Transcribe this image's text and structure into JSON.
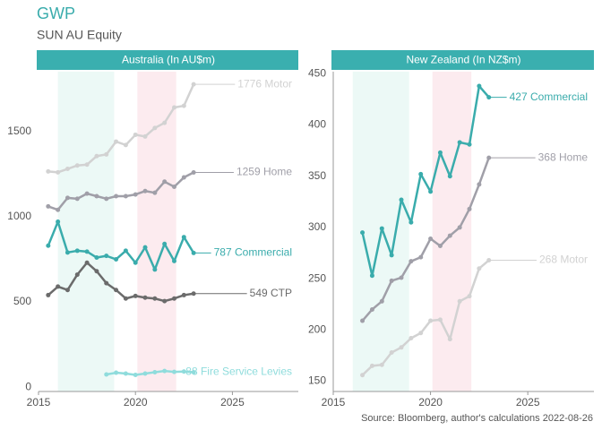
{
  "title": "GWP",
  "subtitle": "SUN AU Equity",
  "source": "Source: Bloomberg, author's calculations 2022-08-26",
  "chart_data": [
    {
      "type": "line",
      "title": "Australia (In AU$m)",
      "x": [
        2015.5,
        2016,
        2016.5,
        2017,
        2017.5,
        2018,
        2018.5,
        2019,
        2019.5,
        2020,
        2020.5,
        2021,
        2021.5,
        2022,
        2022.5,
        2023
      ],
      "xlim": [
        2015,
        2028.4
      ],
      "xticks": [
        2015,
        2020,
        2025
      ],
      "ylim": [
        -25,
        1850
      ],
      "yticks": [
        0,
        500,
        1000,
        1500
      ],
      "shading": [
        {
          "from": 2016,
          "to": 2018.9,
          "color": "#ecf9f6"
        },
        {
          "from": 2020.1,
          "to": 2022.1,
          "color": "#fcebef"
        }
      ],
      "series": [
        {
          "label": "1776 Motor",
          "color": "#d2d2d2",
          "values": [
            1265,
            1260,
            1280,
            1300,
            1305,
            1355,
            1365,
            1440,
            1420,
            1480,
            1470,
            1520,
            1550,
            1640,
            1650,
            1776
          ]
        },
        {
          "label": "1259 Home",
          "color": "#a09fa8",
          "values": [
            1060,
            1040,
            1110,
            1105,
            1135,
            1120,
            1105,
            1120,
            1120,
            1130,
            1150,
            1140,
            1205,
            1175,
            1230,
            1259
          ]
        },
        {
          "label": "787 Commercial",
          "color": "#3aacac",
          "values": [
            830,
            970,
            790,
            800,
            795,
            760,
            770,
            750,
            800,
            730,
            820,
            690,
            840,
            740,
            880,
            787
          ]
        },
        {
          "label": "549 CTP",
          "color": "#6b6b6b",
          "values": [
            540,
            590,
            570,
            660,
            730,
            680,
            610,
            570,
            520,
            535,
            525,
            520,
            505,
            520,
            540,
            549
          ]
        },
        {
          "label": "88 Fire Service Levies",
          "color": "#8fdcdc",
          "values": [
            null,
            null,
            null,
            null,
            null,
            null,
            75,
            85,
            80,
            72,
            80,
            88,
            95,
            90,
            92,
            88
          ]
        }
      ]
    },
    {
      "type": "line",
      "title": "New Zealand (In NZ$m)",
      "x": [
        2016.5,
        2017,
        2017.5,
        2018,
        2018.5,
        2019,
        2019.5,
        2020,
        2020.5,
        2021,
        2021.5,
        2022,
        2022.5,
        2023
      ],
      "xlim": [
        2015,
        2028.4
      ],
      "xticks": [
        2015,
        2020,
        2025
      ],
      "ylim": [
        140,
        452
      ],
      "yticks": [
        150,
        200,
        250,
        300,
        350,
        400,
        450
      ],
      "shading": [
        {
          "from": 2016,
          "to": 2018.9,
          "color": "#ecf9f6"
        },
        {
          "from": 2020.1,
          "to": 2022.1,
          "color": "#fcebef"
        }
      ],
      "series": [
        {
          "label": "427 Commercial",
          "color": "#3aacac",
          "values": [
            295,
            253,
            299,
            273,
            327,
            305,
            352,
            335,
            373,
            350,
            383,
            381,
            438,
            427
          ]
        },
        {
          "label": "368 Home",
          "color": "#a09fa8",
          "values": [
            209,
            220,
            228,
            248,
            251,
            267,
            271,
            289,
            282,
            292,
            300,
            318,
            342,
            368
          ]
        },
        {
          "label": "268 Motor",
          "color": "#d2d2d2",
          "values": [
            156,
            165,
            166,
            178,
            183,
            192,
            197,
            209,
            210,
            191,
            228,
            233,
            260,
            268
          ]
        }
      ]
    }
  ]
}
